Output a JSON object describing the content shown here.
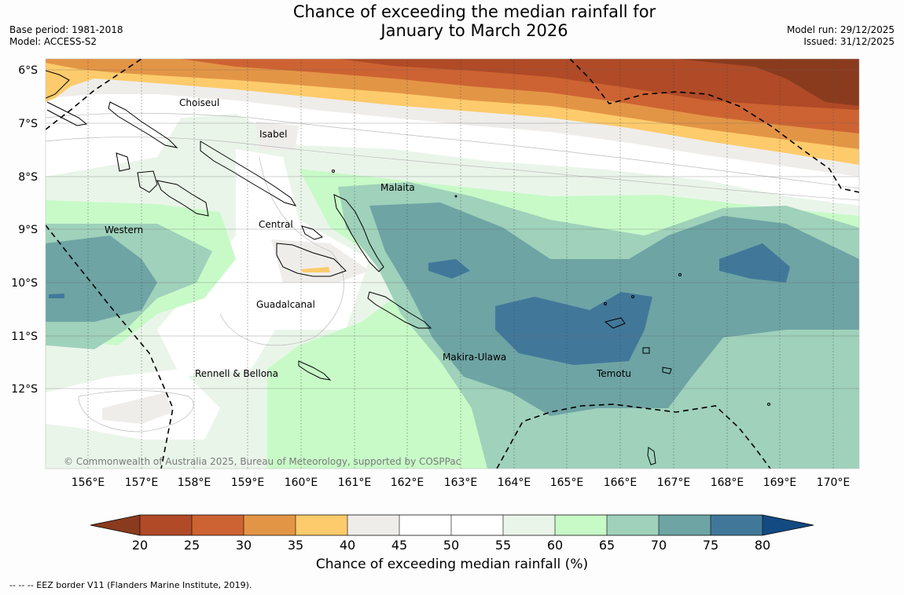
{
  "title": {
    "line1": "Chance of exceeding the median rainfall for",
    "line2": "January to March 2026"
  },
  "meta": {
    "base_period": "Base period: 1981-2018",
    "model": "Model: ACCESS-S2",
    "model_run": "Model run: 29/12/2025",
    "issued": "Issued: 31/12/2025"
  },
  "map": {
    "lat_labels": [
      "6°S",
      "7°S",
      "8°S",
      "9°S",
      "10°S",
      "11°S",
      "12°S"
    ],
    "lon_labels": [
      "156°E",
      "157°E",
      "158°E",
      "159°E",
      "160°E",
      "161°E",
      "162°E",
      "163°E",
      "164°E",
      "165°E",
      "166°E",
      "167°E",
      "168°E",
      "169°E",
      "170°E"
    ],
    "regions": [
      "Choiseul",
      "Isabel",
      "Malaita",
      "Central",
      "Western",
      "Guadalcanal",
      "Makira-Ulawa",
      "Temotu",
      "Rennell & Bellona"
    ],
    "copyright": "© Commonwealth of Australia 2025, Bureau of Meteorology, supported by COSPPac"
  },
  "colorbar": {
    "ticks": [
      "20",
      "25",
      "30",
      "35",
      "40",
      "45",
      "50",
      "55",
      "60",
      "65",
      "70",
      "75",
      "80"
    ],
    "colors": {
      "below20": "#8a3b1e",
      "c20_25": "#b04a27",
      "c25_30": "#cd6332",
      "c30_35": "#e39546",
      "c35_40": "#fdcb6b",
      "c40_45": "#efedea",
      "c45_55": "#ffffff",
      "c55_60": "#eaf5ea",
      "c60_65": "#c8fac8",
      "c65_70": "#9fd1bb",
      "c70_75": "#6ea4a4",
      "c75_80": "#41789a",
      "above80": "#134a82"
    },
    "title": "Chance of exceeding median rainfall (%)"
  },
  "eez_note": "--  --  -- EEZ border V11 (Flanders Marine Institute, 2019)."
}
